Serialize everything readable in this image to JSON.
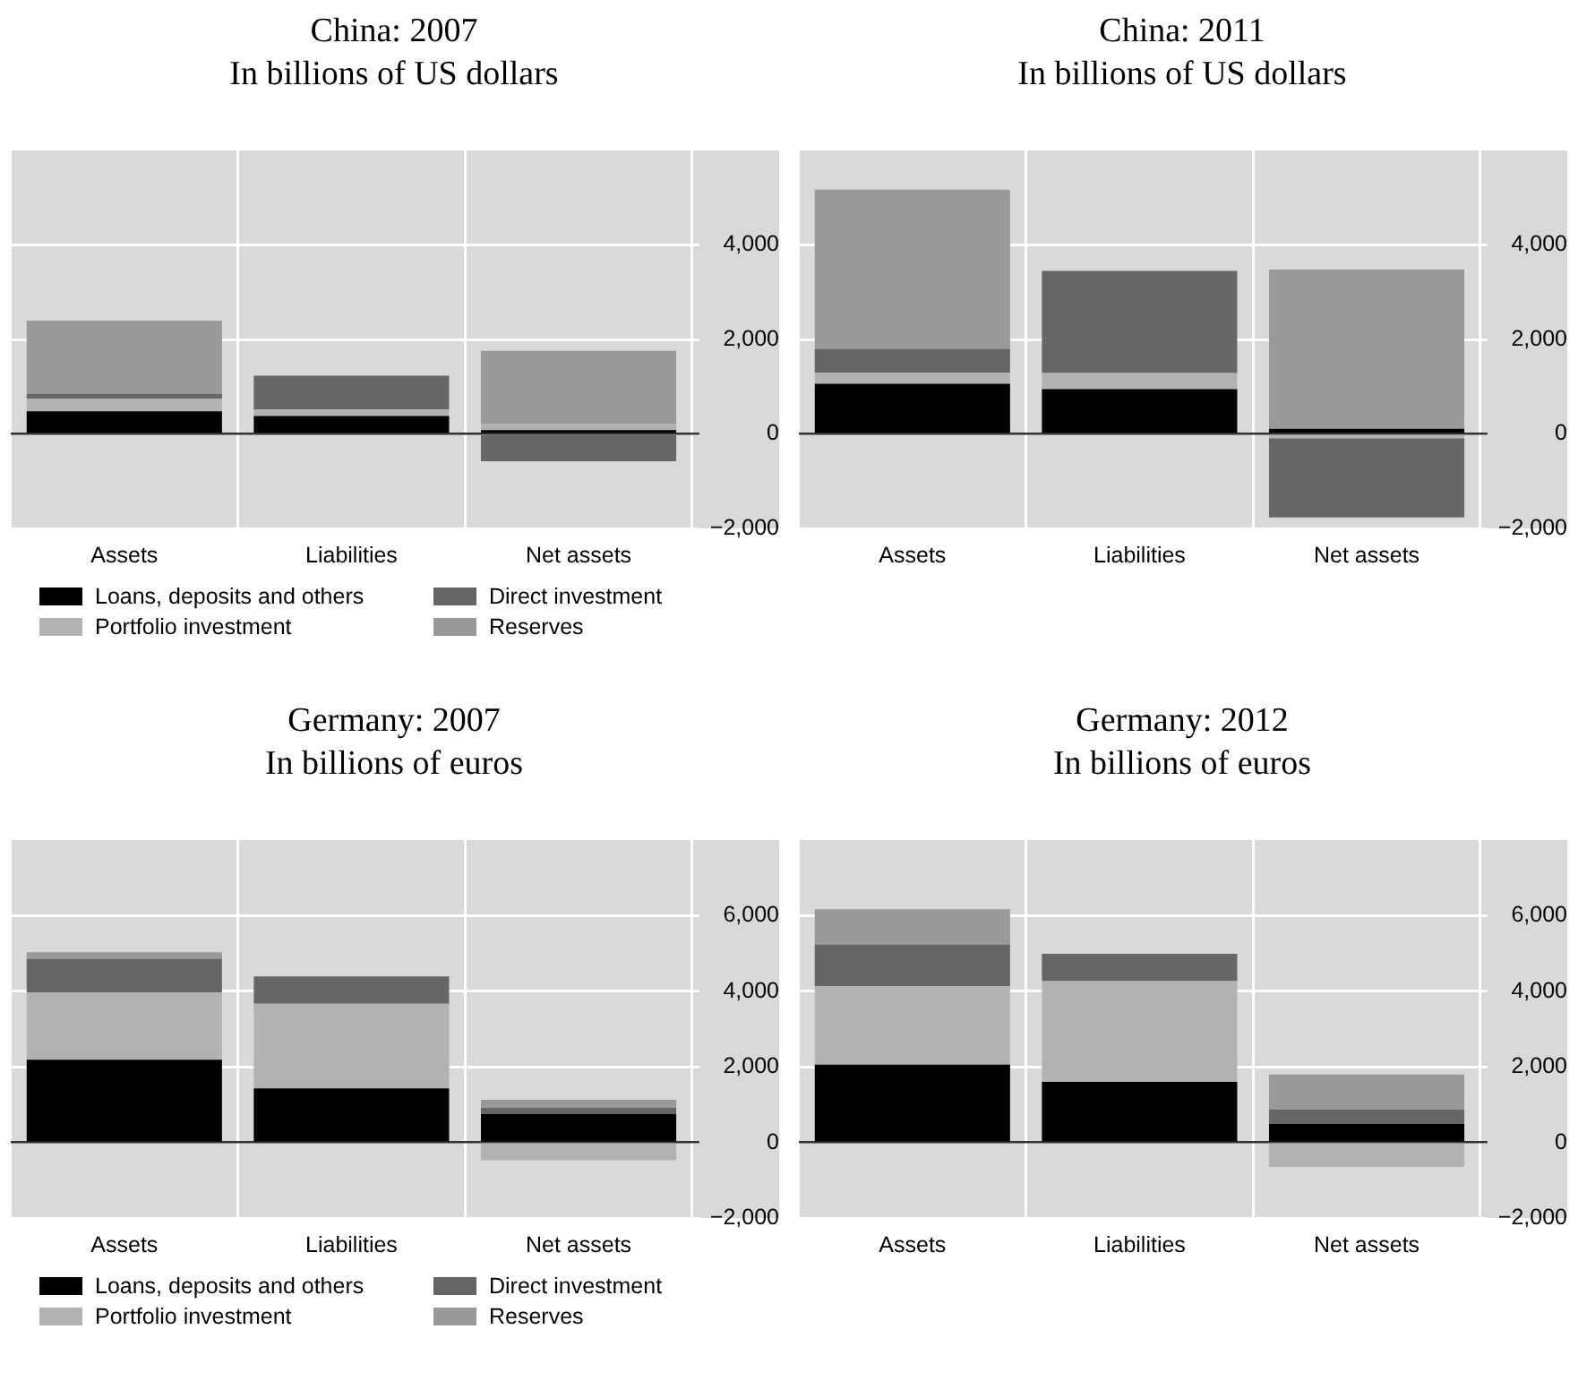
{
  "chart_data": [
    {
      "type": "bar",
      "title": "China: 2007",
      "subtitle": "In billions of US dollars",
      "categories": [
        "Assets",
        "Liabilities",
        "Net assets"
      ],
      "stacked": true,
      "legend": "bottom",
      "grid": true,
      "ylim": [
        -2000,
        6000
      ],
      "yticks": [
        {
          "value": -2000,
          "label": "−2,000"
        },
        {
          "value": 0,
          "label": "0"
        },
        {
          "value": 2000,
          "label": "2,000"
        },
        {
          "value": 4000,
          "label": "4,000"
        }
      ],
      "series": [
        {
          "name": "Loans, deposits and others",
          "color": "#000000",
          "values": [
            480,
            380,
            80
          ]
        },
        {
          "name": "Portfolio investment",
          "color": "#b2b2b2",
          "values": [
            270,
            140,
            130
          ]
        },
        {
          "name": "Direct investment",
          "color": "#666666",
          "values": [
            100,
            710,
            -580
          ]
        },
        {
          "name": "Reserves",
          "color": "#999999",
          "values": [
            1550,
            0,
            1550
          ]
        }
      ]
    },
    {
      "type": "bar",
      "title": "China: 2011",
      "subtitle": "In billions of US dollars",
      "categories": [
        "Assets",
        "Liabilities",
        "Net assets"
      ],
      "stacked": true,
      "grid": true,
      "ylim": [
        -2000,
        6000
      ],
      "yticks": [
        {
          "value": -2000,
          "label": "−2,000"
        },
        {
          "value": 0,
          "label": "0"
        },
        {
          "value": 2000,
          "label": "2,000"
        },
        {
          "value": 4000,
          "label": "4,000"
        }
      ],
      "series": [
        {
          "color": "#000000",
          "values": [
            1060,
            950,
            110
          ]
        },
        {
          "color": "#b2b2b2",
          "values": [
            240,
            340,
            -90
          ]
        },
        {
          "color": "#666666",
          "values": [
            500,
            2160,
            -1680
          ]
        },
        {
          "color": "#999999",
          "values": [
            3370,
            0,
            3370
          ]
        }
      ]
    },
    {
      "type": "bar",
      "title": "Germany: 2007",
      "subtitle": "In billions of euros",
      "categories": [
        "Assets",
        "Liabilities",
        "Net assets"
      ],
      "stacked": true,
      "legend": "bottom",
      "grid": true,
      "ylim": [
        -2000,
        8000
      ],
      "yticks": [
        {
          "value": -2000,
          "label": "−2,000"
        },
        {
          "value": 0,
          "label": "0"
        },
        {
          "value": 2000,
          "label": "2,000"
        },
        {
          "value": 4000,
          "label": "4,000"
        },
        {
          "value": 6000,
          "label": "6,000"
        }
      ],
      "series": [
        {
          "name": "Loans, deposits and others",
          "color": "#000000",
          "values": [
            2190,
            1430,
            750
          ]
        },
        {
          "name": "Portfolio investment",
          "color": "#b2b2b2",
          "values": [
            1780,
            2240,
            -470
          ]
        },
        {
          "name": "Direct investment",
          "color": "#666666",
          "values": [
            890,
            720,
            170
          ]
        },
        {
          "name": "Reserves",
          "color": "#999999",
          "values": [
            170,
            0,
            210
          ]
        }
      ]
    },
    {
      "type": "bar",
      "title": "Germany: 2012",
      "subtitle": "In billions of euros",
      "categories": [
        "Assets",
        "Liabilities",
        "Net assets"
      ],
      "stacked": true,
      "grid": true,
      "ylim": [
        -2000,
        8000
      ],
      "yticks": [
        {
          "value": -2000,
          "label": "−2,000"
        },
        {
          "value": 0,
          "label": "0"
        },
        {
          "value": 2000,
          "label": "2,000"
        },
        {
          "value": 4000,
          "label": "4,000"
        },
        {
          "value": 6000,
          "label": "6,000"
        }
      ],
      "series": [
        {
          "color": "#000000",
          "values": [
            2060,
            1600,
            490
          ]
        },
        {
          "color": "#b2b2b2",
          "values": [
            2080,
            2670,
            -650
          ]
        },
        {
          "color": "#666666",
          "values": [
            1100,
            720,
            380
          ]
        },
        {
          "color": "#999999",
          "values": [
            930,
            0,
            930
          ]
        }
      ]
    }
  ]
}
